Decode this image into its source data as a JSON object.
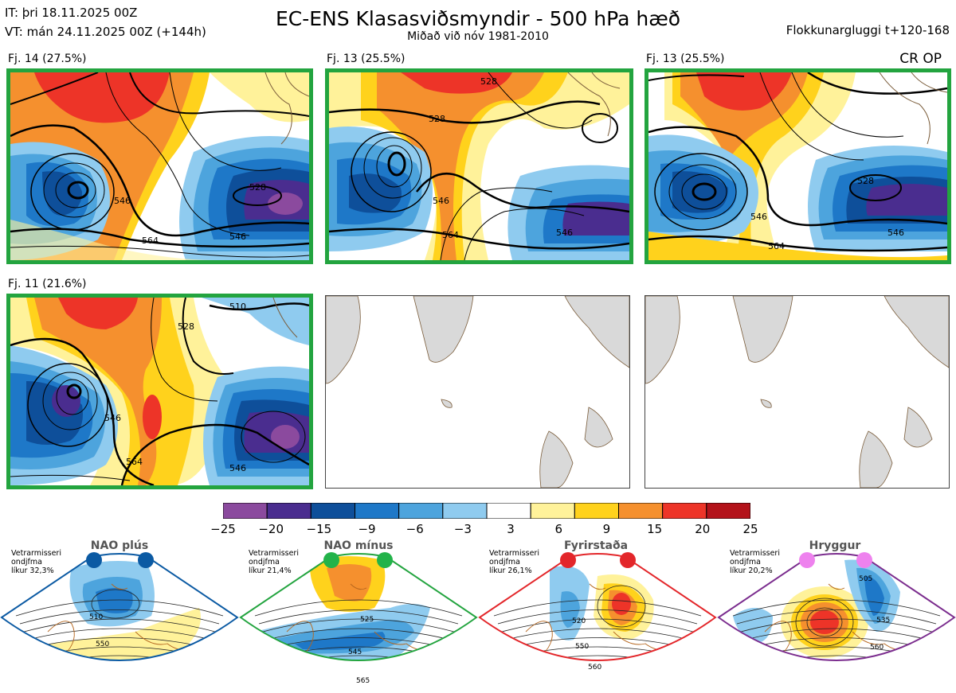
{
  "header": {
    "it_line": "IT: þri 18.11.2025 00Z",
    "vt_line": "VT: mán 24.11.2025 00Z  (+144h)",
    "title": "EC-ENS Klasasviðsmyndir - 500 hPa hæð",
    "subtitle": "Miðað við nóv 1981-2010",
    "window_label": "Flokkunargluggi t+120-168",
    "cr_op": "CR OP"
  },
  "panels": [
    {
      "label": "Fj. 14 (27.5%)",
      "active": true,
      "contours": [
        "528",
        "546",
        "564",
        "546"
      ]
    },
    {
      "label": "Fj. 13 (25.5%)",
      "active": true,
      "contours": [
        "528",
        "528",
        "546",
        "564",
        "546"
      ]
    },
    {
      "label": "Fj. 13 (25.5%)",
      "active": true,
      "contours": [
        "528",
        "546",
        "564",
        "546"
      ]
    },
    {
      "label": "Fj. 11 (21.6%)",
      "active": true,
      "contours": [
        "510",
        "528",
        "546",
        "564",
        "546"
      ]
    },
    {
      "label": "",
      "active": false,
      "contours": []
    },
    {
      "label": "",
      "active": false,
      "contours": []
    }
  ],
  "colorbar": {
    "ticks": [
      "−25",
      "−20",
      "−15",
      "−9",
      "−6",
      "−3",
      "3",
      "6",
      "9",
      "15",
      "20",
      "25"
    ],
    "colors": [
      "#8b4a9e",
      "#4a2d8f",
      "#0e4f9a",
      "#1e78c8",
      "#4da4dd",
      "#8fcbef",
      "#ffffff",
      "#fff29a",
      "#ffd21c",
      "#f5902e",
      "#ed3428",
      "#b3121a"
    ]
  },
  "regimes": [
    {
      "title": "NAO plús",
      "note": [
        "Vetrarmisseri",
        "ondjfma",
        "líkur 32,3%"
      ],
      "frame_color": "#0b5aa3",
      "dot_color": "#0b5aa3",
      "contours": [
        "510",
        "550"
      ]
    },
    {
      "title": "NAO mínus",
      "note": [
        "Vetrarmisseri",
        "ondjfma",
        "líkur 21,4%"
      ],
      "frame_color": "#23a43f",
      "dot_color": "#23b34a",
      "contours": [
        "525",
        "545",
        "565"
      ]
    },
    {
      "title": "Fyrirstaða",
      "note": [
        "Vetrarmisseri",
        "ondjfma",
        "líkur 26,1%"
      ],
      "frame_color": "#e3262a",
      "dot_color": "#e3262a",
      "contours": [
        "520",
        "550",
        "560"
      ]
    },
    {
      "title": "Hryggur",
      "note": [
        "Vetrarmisseri",
        "ondjfma",
        "líkur 20,2%"
      ],
      "frame_color": "#7b2d8e",
      "dot_color": "#ee82ee",
      "contours": [
        "505",
        "535",
        "560"
      ]
    }
  ]
}
